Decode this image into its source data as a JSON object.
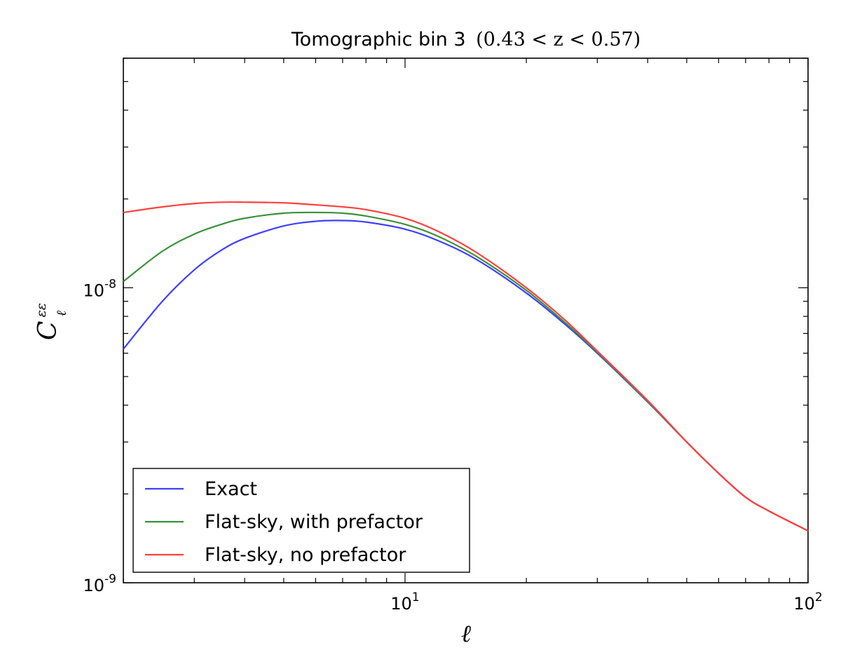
{
  "chart_data": {
    "type": "line",
    "title": {
      "text": "Tomographic bin 3",
      "math": "(0.43 < z < 0.57)"
    },
    "xlabel": "ℓ",
    "ylabel": {
      "base": "C",
      "sub": "ℓ",
      "sup": "εε"
    },
    "xscale": "log",
    "yscale": "log",
    "xlim": [
      2.0,
      100
    ],
    "ylim": [
      1e-09,
      6e-08
    ],
    "grid": false,
    "legend_position": "lower-left",
    "x_ticks": [
      {
        "value": 10,
        "label_base": "10",
        "label_exp": "1"
      },
      {
        "value": 100,
        "label_base": "10",
        "label_exp": "2"
      }
    ],
    "y_ticks": [
      {
        "value": 1e-08,
        "label_base": "10",
        "label_exp": "-8"
      },
      {
        "value": 1e-09,
        "label_base": "10",
        "label_exp": "-9"
      }
    ],
    "x": [
      2,
      2.5,
      3,
      3.5,
      4,
      5,
      6,
      7,
      8,
      10,
      12,
      15,
      20,
      25,
      30,
      40,
      50,
      60,
      70,
      80,
      100
    ],
    "series": [
      {
        "name": "Exact",
        "color": "#3f3fff",
        "values": [
          6.2e-09,
          9e-09,
          1.15e-08,
          1.34e-08,
          1.47e-08,
          1.62e-08,
          1.68e-08,
          1.69e-08,
          1.67e-08,
          1.58e-08,
          1.45e-08,
          1.25e-08,
          9.6e-09,
          7.5e-09,
          6e-09,
          4.1e-09,
          3e-09,
          2.35e-09,
          1.95e-09,
          1.75e-09,
          1.5e-09
        ]
      },
      {
        "name": "Flat-sky, with prefactor",
        "color": "#3a913a",
        "values": [
          1.05e-08,
          1.33e-08,
          1.52e-08,
          1.64e-08,
          1.72e-08,
          1.79e-08,
          1.8e-08,
          1.79e-08,
          1.75e-08,
          1.64e-08,
          1.5e-08,
          1.28e-08,
          9.8e-09,
          7.6e-09,
          6.05e-09,
          4.12e-09,
          3e-09,
          2.35e-09,
          1.95e-09,
          1.75e-09,
          1.5e-09
        ]
      },
      {
        "name": "Flat-sky, no prefactor",
        "color": "#ff4040",
        "values": [
          1.8e-08,
          1.88e-08,
          1.93e-08,
          1.95e-08,
          1.95e-08,
          1.94e-08,
          1.91e-08,
          1.88e-08,
          1.84e-08,
          1.72e-08,
          1.56e-08,
          1.32e-08,
          1e-08,
          7.75e-09,
          6.1e-09,
          4.15e-09,
          3e-09,
          2.35e-09,
          1.95e-09,
          1.75e-09,
          1.5e-09
        ]
      }
    ]
  }
}
